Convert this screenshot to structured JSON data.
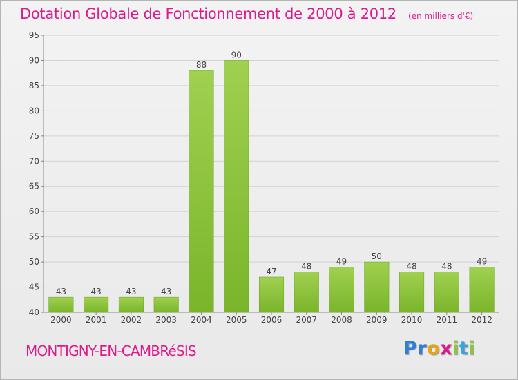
{
  "chart_data": {
    "type": "bar",
    "title": "Dotation Globale de Fonctionnement de 2000 à 2012",
    "unit_label": "(en milliers d'€)",
    "categories": [
      "2000",
      "2001",
      "2002",
      "2003",
      "2004",
      "2005",
      "2006",
      "2007",
      "2008",
      "2009",
      "2010",
      "2011",
      "2012"
    ],
    "values": [
      43,
      43,
      43,
      43,
      88,
      90,
      47,
      48,
      49,
      50,
      48,
      48,
      49
    ],
    "value_labels": [
      "43",
      "43",
      "43",
      "43",
      "88",
      "90",
      "47",
      "48",
      "49",
      "50",
      "48",
      "48",
      "49"
    ],
    "ylim": [
      40,
      95
    ],
    "yticks": [
      40,
      45,
      50,
      55,
      60,
      65,
      70,
      75,
      80,
      85,
      90,
      95
    ],
    "ytick_labels": [
      "40",
      "45",
      "50",
      "55",
      "60",
      "65",
      "70",
      "75",
      "80",
      "85",
      "90",
      "95"
    ],
    "grid": true,
    "bar_color": "#7ab52b",
    "bar_color_light": "#a0d050",
    "xlabel": "",
    "ylabel": ""
  },
  "commune": "MONTIGNY-EN-CAMBRéSIS",
  "logo": {
    "letters": [
      {
        "char": "P",
        "color": "#2f7fd6"
      },
      {
        "char": "r",
        "color": "#2f7fd6"
      },
      {
        "char": "o",
        "color": "#e8a21c"
      },
      {
        "char": "x",
        "color": "#e0198a"
      },
      {
        "char": "i",
        "color": "#8cc63f"
      },
      {
        "char": "t",
        "color": "#3aa4dd"
      },
      {
        "char": "i",
        "color": "#8cc63f"
      }
    ]
  }
}
